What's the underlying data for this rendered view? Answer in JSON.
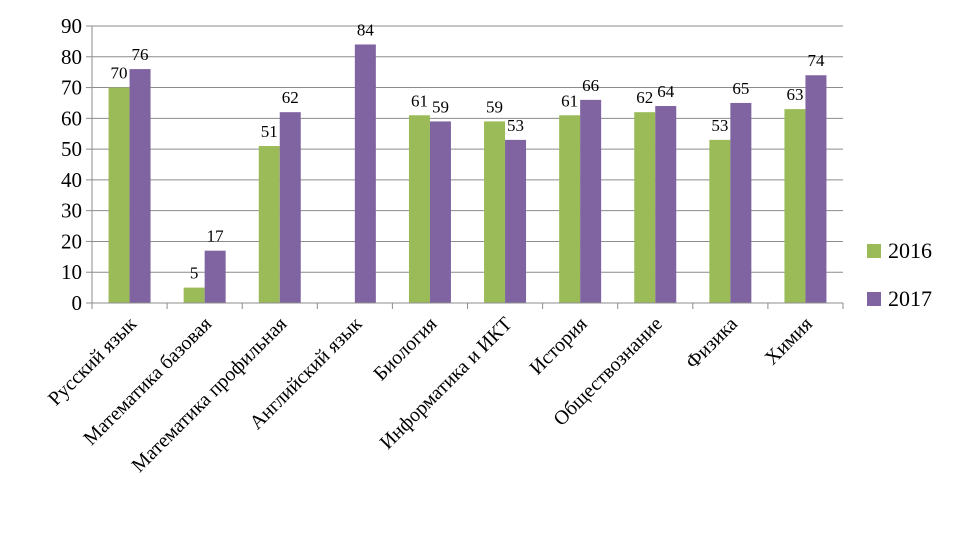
{
  "chart_data": {
    "type": "bar",
    "title": "",
    "xlabel": "",
    "ylabel": "",
    "ylim": [
      0,
      90
    ],
    "yticks": [
      0,
      10,
      20,
      30,
      40,
      50,
      60,
      70,
      80,
      90
    ],
    "grid": true,
    "legend_position": "right",
    "categories": [
      "Русский язык",
      "Математика базовая",
      "Математика профильная",
      "Английский язык",
      "Биология",
      "Информатика и ИКТ",
      "История",
      "Обществознание",
      "Физика",
      "Химия"
    ],
    "series": [
      {
        "name": "2016",
        "color": "#9BBB59",
        "values": [
          70,
          5,
          51,
          null,
          61,
          59,
          61,
          62,
          53,
          63
        ],
        "labels": [
          "70",
          "5",
          "51",
          "",
          "61",
          "59",
          "61",
          "62",
          "53",
          "63"
        ]
      },
      {
        "name": "2017",
        "color": "#8064A2",
        "values": [
          76,
          17,
          62,
          84,
          59,
          53,
          66,
          64,
          65,
          74
        ],
        "labels": [
          "76",
          "17",
          "62",
          "84",
          "59",
          "53",
          "66",
          "64",
          "65",
          "74"
        ]
      }
    ]
  }
}
